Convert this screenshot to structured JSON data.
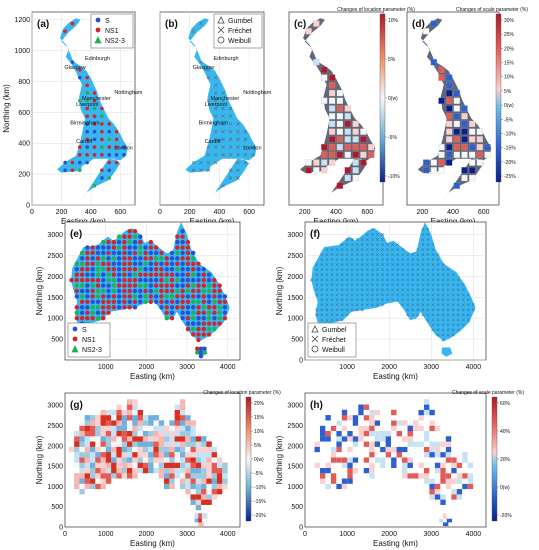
{
  "figure": {
    "colors": {
      "land": "#38b6f0",
      "grey_land": "#5f6879",
      "s_marker": "#2a4fd6",
      "ns1_marker": "#d4232a",
      "ns23_marker": "#22b24c"
    },
    "cities": [
      "Edinburgh",
      "Glasgow",
      "Manchester",
      "Liverpool",
      "Nottingham",
      "Birmingham",
      "Cardiff",
      "London"
    ],
    "colorbars": {
      "c": {
        "title": "Changes of location parameter (%)",
        "ticks": [
          "10%",
          "5%",
          "0(w)",
          "-5%",
          "-10%"
        ]
      },
      "d": {
        "title": "Changes of scale parameter (%)",
        "ticks": [
          "30%",
          "25%",
          "20%",
          "15%",
          "10%",
          "5%",
          "0(w)",
          "-5%",
          "-10%",
          "-15%",
          "-20%",
          "-25%"
        ]
      },
      "g": {
        "title": "Changes of location parameter (%)",
        "ticks": [
          "20%",
          "15%",
          "10%",
          "5%",
          "0(w)",
          "-5%",
          "-10%",
          "-15%",
          "-20%"
        ]
      },
      "h": {
        "title": "Changes of scale parameter (%)",
        "ticks": [
          "60%",
          "40%",
          "20%",
          "0(w)",
          "-20%"
        ]
      }
    }
  },
  "chart_data": [
    {
      "panel": "(a)",
      "type": "scatter",
      "xlabel": "Easting (km)",
      "ylabel": "Northing (km)",
      "xlim": [
        0,
        700
      ],
      "ylim": [
        0,
        1250
      ],
      "xticks": [
        0,
        200,
        400,
        600
      ],
      "yticks": [
        0,
        200,
        400,
        600,
        800,
        1000,
        1200
      ],
      "legend": [
        "S",
        "NS1",
        "NS2-3"
      ],
      "legend_position": "top-right",
      "grid": true
    },
    {
      "panel": "(b)",
      "type": "scatter",
      "xlabel": "Easting (km)",
      "ylabel": "",
      "xlim": [
        0,
        700
      ],
      "ylim": [
        0,
        1250
      ],
      "xticks": [
        0,
        200,
        400,
        600
      ],
      "yticks": [],
      "legend": [
        "Gumbel",
        "Fréchet",
        "Weibull"
      ],
      "legend_position": "top-right",
      "grid": true
    },
    {
      "panel": "(c)",
      "type": "heatmap",
      "xlabel": "Easting (km)",
      "ylabel": "",
      "xlim": [
        100,
        700
      ],
      "ylim": [
        0,
        1250
      ],
      "xticks": [
        200,
        400,
        600
      ],
      "yticks": [],
      "grid": false
    },
    {
      "panel": "(d)",
      "type": "heatmap",
      "xlabel": "Easting (km)",
      "ylabel": "",
      "xlim": [
        100,
        700
      ],
      "ylim": [
        0,
        1250
      ],
      "xticks": [
        200,
        400,
        600
      ],
      "yticks": [],
      "grid": false
    },
    {
      "panel": "(e)",
      "type": "scatter",
      "xlabel": "Easting (km)",
      "ylabel": "Northing (km)",
      "xlim": [
        0,
        4300
      ],
      "ylim": [
        0,
        3300
      ],
      "xticks": [
        1000,
        2000,
        3000,
        4000
      ],
      "yticks": [
        500,
        1000,
        1500,
        2000,
        2500,
        3000
      ],
      "legend": [
        "S",
        "NS1",
        "NS2-3"
      ],
      "legend_position": "bottom-left",
      "grid": true
    },
    {
      "panel": "(f)",
      "type": "scatter",
      "xlabel": "Easting (km)",
      "ylabel": "Northing (km)",
      "xlim": [
        0,
        4300
      ],
      "ylim": [
        0,
        3300
      ],
      "xticks": [
        1000,
        2000,
        3000,
        4000
      ],
      "yticks": [
        0,
        500,
        1000,
        1500,
        2000,
        2500,
        3000
      ],
      "legend": [
        "Gumbel",
        "Fréchet",
        "Weibull"
      ],
      "legend_position": "bottom-left",
      "grid": true
    },
    {
      "panel": "(g)",
      "type": "heatmap",
      "xlabel": "Easting (km)",
      "ylabel": "Northing (km)",
      "xlim": [
        0,
        4300
      ],
      "ylim": [
        0,
        3300
      ],
      "xticks": [
        0,
        1000,
        2000,
        3000,
        4000
      ],
      "yticks": [
        0,
        500,
        1000,
        1500,
        2000,
        2500,
        3000
      ],
      "grid": false
    },
    {
      "panel": "(h)",
      "type": "heatmap",
      "xlabel": "Easting (km)",
      "ylabel": "Northing (km)",
      "xlim": [
        0,
        4300
      ],
      "ylim": [
        0,
        3300
      ],
      "xticks": [
        0,
        1000,
        2000,
        3000,
        4000
      ],
      "yticks": [
        0,
        500,
        1000,
        1500,
        2000,
        2500,
        3000
      ],
      "grid": false
    }
  ]
}
